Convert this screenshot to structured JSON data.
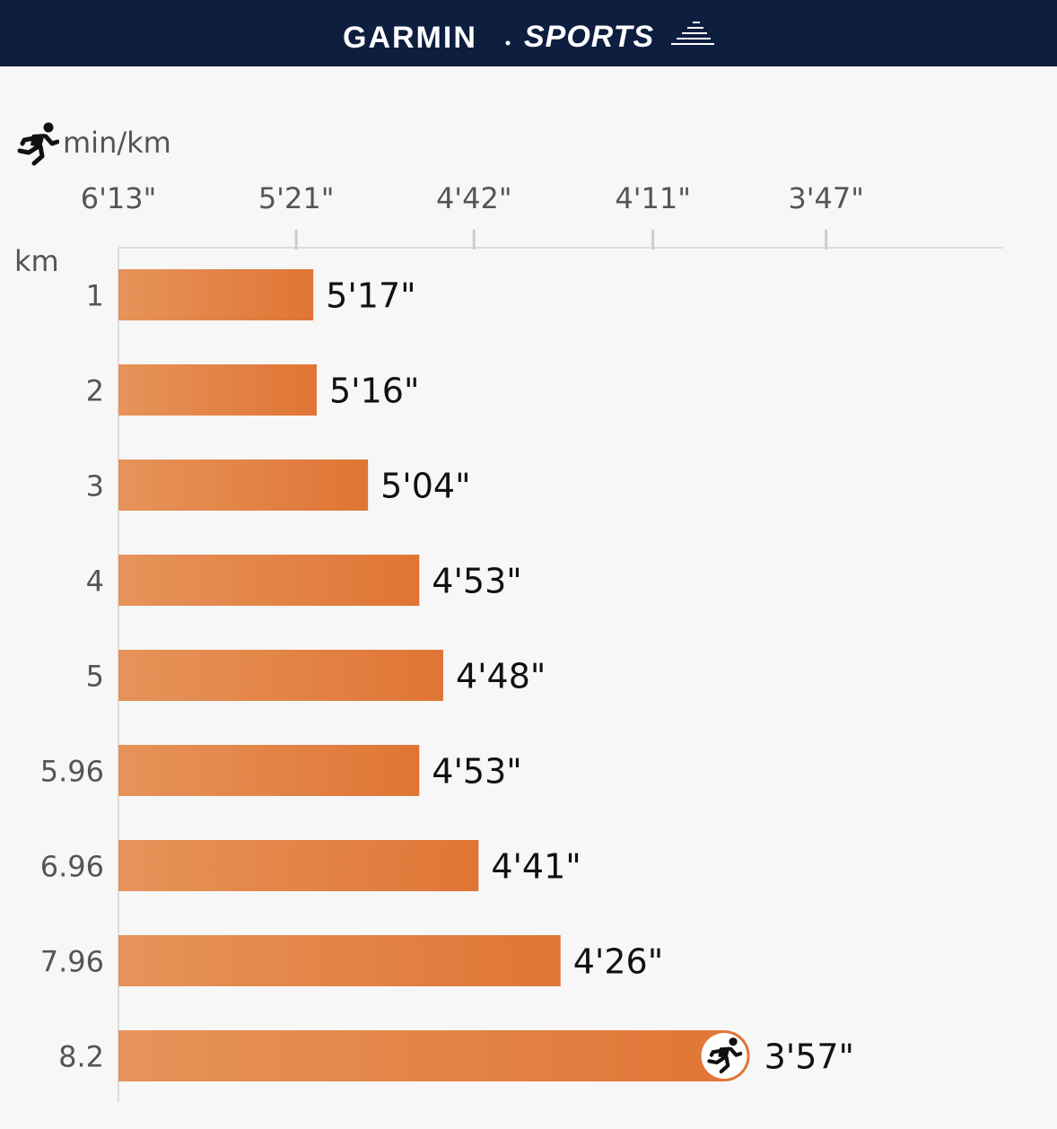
{
  "header": {
    "brand": "GARMIN",
    "subbrand": "SPORTS",
    "background": "#0d1e3f"
  },
  "chart_data": {
    "type": "bar",
    "orientation": "horizontal",
    "title": "",
    "value_label": "min/km",
    "category_label": "km",
    "categories": [
      "1",
      "2",
      "3",
      "4",
      "5",
      "5.96",
      "6.96",
      "7.96",
      "8.2"
    ],
    "value_labels": [
      "5'17\"",
      "5'16\"",
      "5'04\"",
      "4'53\"",
      "4'48\"",
      "4'53\"",
      "4'41\"",
      "4'26\"",
      "3'57\""
    ],
    "values_seconds": [
      317,
      316,
      304,
      293,
      288,
      293,
      281,
      266,
      237
    ],
    "speed_values_kmh": [
      11.36,
      11.39,
      11.84,
      12.29,
      12.5,
      12.29,
      12.81,
      13.53,
      15.19
    ],
    "axis_ticks": [
      "6'13\"",
      "5'21\"",
      "4'42\"",
      "4'11\"",
      "3'47\""
    ],
    "axis_tick_speeds_kmh": [
      9.65,
      11.21,
      12.77,
      14.34,
      15.86
    ],
    "fastest_index": 8,
    "grid": false,
    "bar_color_start": "#e6935a",
    "bar_color_end": "#e07535",
    "icon": "runner-icon"
  }
}
